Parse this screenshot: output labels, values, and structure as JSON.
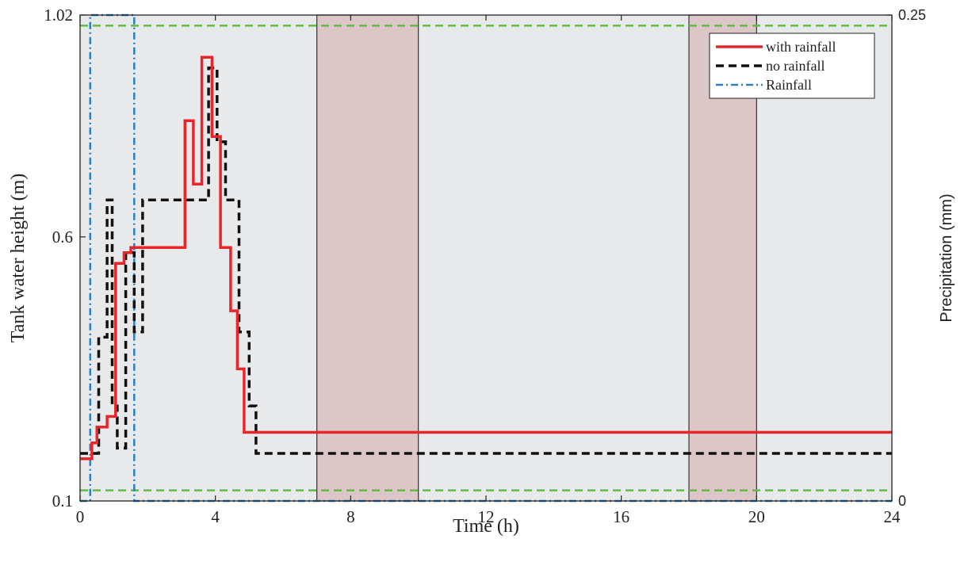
{
  "chart_data": {
    "type": "line",
    "xlabel": "Time (h)",
    "ylabel": "Tank water height (m)",
    "y2label": "Precipitation (mm)",
    "xlim": [
      0,
      24
    ],
    "ylim": [
      0.1,
      1.02
    ],
    "y2lim": [
      0,
      0.25
    ],
    "xticks": [
      0,
      4,
      8,
      12,
      16,
      20,
      24
    ],
    "yticks": [
      0.1,
      0.6,
      1.02
    ],
    "yticklabels": [
      "0.1",
      "0.6",
      "1.02"
    ],
    "y2ticks": [
      0,
      0.25
    ],
    "y2ticklabels": [
      "0",
      "0.25"
    ],
    "grid": false,
    "legend_position": "top-right",
    "background_color": "#e8e9eb",
    "shaded_bands": [
      {
        "x0": 7,
        "x1": 10,
        "color": "#dcc6c8"
      },
      {
        "x0": 18,
        "x1": 20,
        "color": "#dcc6c8"
      }
    ],
    "threshold_lines": [
      {
        "y": 0.12,
        "color": "#66bb44",
        "style": "dashed"
      },
      {
        "y": 1.0,
        "color": "#66bb44",
        "style": "dashed"
      }
    ],
    "series": [
      {
        "name": "with rainfall",
        "color": "#e8262a",
        "style": "solid",
        "axis": "left",
        "x": [
          0,
          0.35,
          0.35,
          0.5,
          0.5,
          0.8,
          0.8,
          1.05,
          1.05,
          1.3,
          1.3,
          1.5,
          1.5,
          3.1,
          3.1,
          3.35,
          3.35,
          3.6,
          3.6,
          3.9,
          3.9,
          4.15,
          4.15,
          4.45,
          4.45,
          4.65,
          4.65,
          4.85,
          4.85,
          5.05,
          5.05,
          24
        ],
        "y": [
          0.18,
          0.18,
          0.21,
          0.21,
          0.24,
          0.24,
          0.26,
          0.26,
          0.55,
          0.55,
          0.57,
          0.57,
          0.58,
          0.58,
          0.82,
          0.82,
          0.7,
          0.7,
          0.94,
          0.94,
          0.79,
          0.79,
          0.58,
          0.58,
          0.46,
          0.46,
          0.35,
          0.35,
          0.23,
          0.23,
          0.23,
          0.23
        ]
      },
      {
        "name": "no rainfall",
        "color": "#111111",
        "style": "dashed",
        "axis": "left",
        "x": [
          0,
          0.55,
          0.55,
          0.8,
          0.8,
          0.95,
          0.95,
          1.1,
          1.1,
          1.35,
          1.35,
          1.6,
          1.6,
          1.85,
          1.85,
          3.8,
          3.8,
          4.05,
          4.05,
          4.3,
          4.3,
          4.7,
          4.7,
          5.0,
          5.0,
          5.2,
          5.2,
          5.4,
          5.4,
          24
        ],
        "y": [
          0.19,
          0.19,
          0.41,
          0.41,
          0.67,
          0.67,
          0.28,
          0.28,
          0.2,
          0.2,
          0.57,
          0.57,
          0.42,
          0.42,
          0.67,
          0.67,
          0.92,
          0.92,
          0.78,
          0.78,
          0.67,
          0.67,
          0.42,
          0.42,
          0.28,
          0.28,
          0.19,
          0.19,
          0.19,
          0.19
        ]
      },
      {
        "name": "Rainfall",
        "color": "#2a7fc0",
        "style": "dashdot",
        "axis": "right",
        "x": [
          0,
          0.3,
          0.3,
          1.6,
          1.6,
          24
        ],
        "y": [
          0,
          0,
          0.25,
          0.25,
          0,
          0
        ]
      }
    ]
  }
}
